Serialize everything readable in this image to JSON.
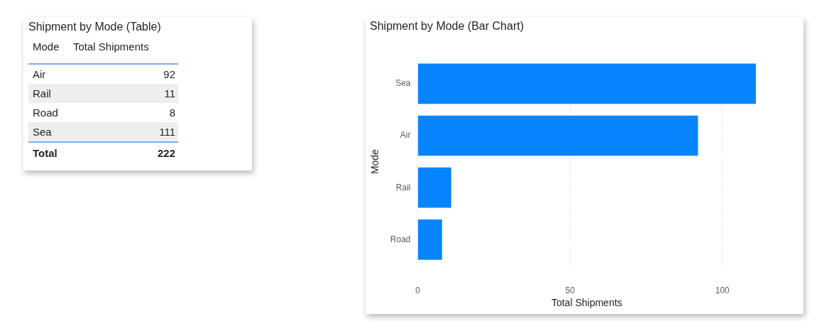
{
  "chart_data": [
    {
      "type": "other",
      "title": "Shipment by Mode (Table)",
      "xlabel": "Mode",
      "ylabel": "Total Shipments",
      "categories": [
        "Air",
        "Rail",
        "Road",
        "Sea"
      ],
      "values": [
        92,
        11,
        8,
        111
      ],
      "data_labels": true,
      "annotations": [
        "Total",
        "222"
      ]
    },
    {
      "type": "bar",
      "orientation": "horizontal",
      "title": "Shipment by Mode (Bar Chart)",
      "xlabel": "Total Shipments",
      "ylabel": "Mode",
      "categories": [
        "Sea",
        "Air",
        "Rail",
        "Road"
      ],
      "values": [
        111,
        92,
        11,
        8
      ],
      "color": "#0785fe",
      "xlim": [
        0,
        111
      ],
      "xticks": [
        0,
        50,
        100
      ],
      "grid": "x"
    }
  ]
}
